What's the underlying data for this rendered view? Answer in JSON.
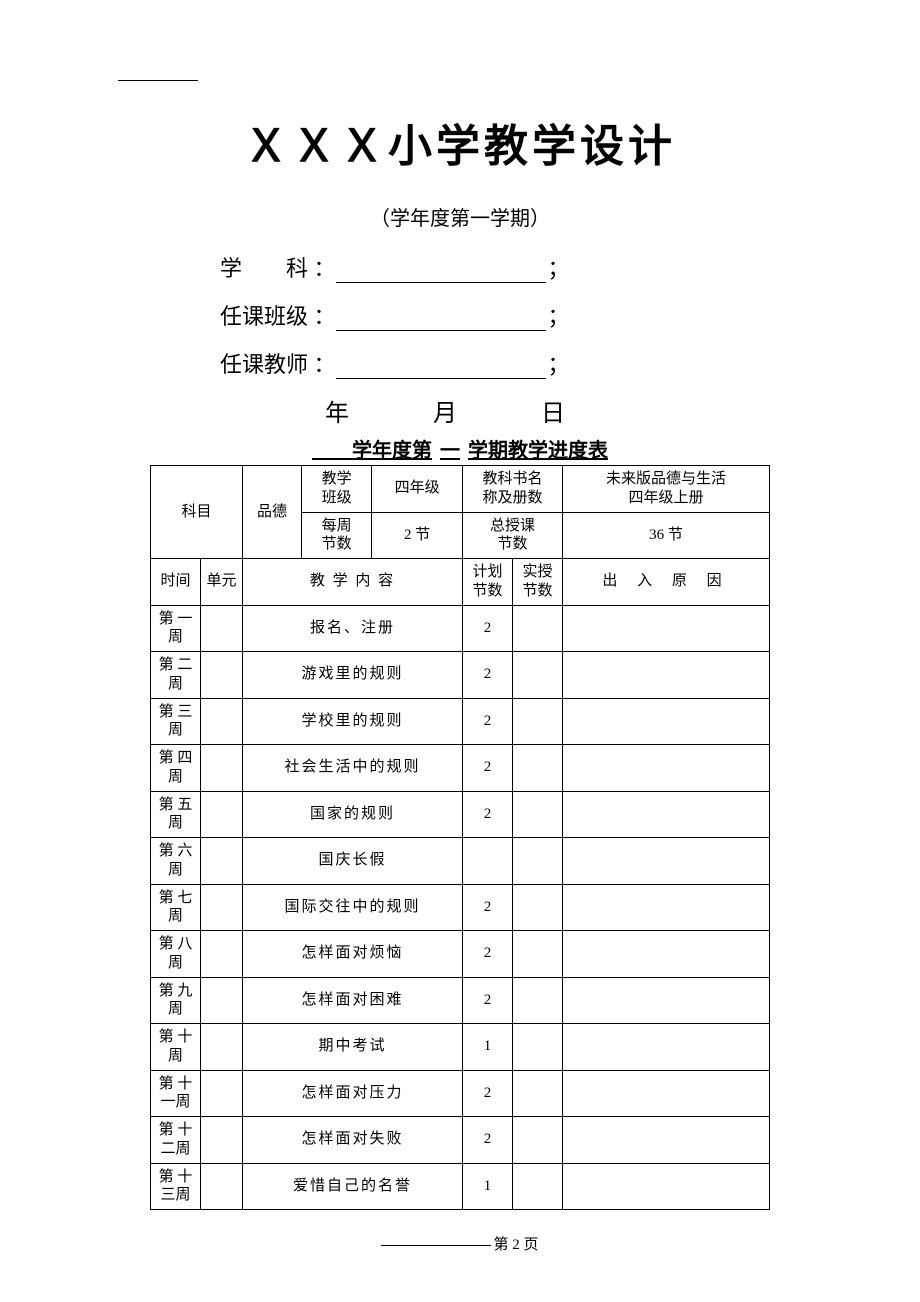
{
  "title": "ＸＸＸ小学教学设计",
  "subtitle": "（学年度第一学期）",
  "fields": {
    "subject_label": "学　　科 ：",
    "class_label": "任课班级 ：",
    "teacher_label": "任课教师 ：",
    "semicolon": "；"
  },
  "date_line": "年　月　日",
  "caption_pre": "　　学年度第",
  "caption_mid": "一",
  "caption_post": "学期教学进度表",
  "header": {
    "subject_l": "科目",
    "subject_v": "品德",
    "class_l": "教学\n班级",
    "class_v": "四年级",
    "book_l": "教科书名\n称及册数",
    "book_v": "未来版品德与生活\n四年级上册",
    "weekly_l": "每周\n节数",
    "weekly_v": "2 节",
    "total_l": "总授课\n节数",
    "total_v": "36 节"
  },
  "cols": {
    "time": "时间",
    "unit": "单元",
    "content": "教 学 内 容",
    "plan": "计划\n节数",
    "actual": "实授\n节数",
    "reason": "出 入 原 因"
  },
  "rows": [
    {
      "wk": "第 一\n周",
      "c": "报名、注册",
      "p": "2"
    },
    {
      "wk": "第 二\n周",
      "c": "游戏里的规则",
      "p": "2"
    },
    {
      "wk": "第 三\n周",
      "c": "学校里的规则",
      "p": "2"
    },
    {
      "wk": "第 四\n周",
      "c": "社会生活中的规则",
      "p": "2"
    },
    {
      "wk": "第 五\n周",
      "c": "国家的规则",
      "p": "2"
    },
    {
      "wk": "第 六\n周",
      "c": "国庆长假",
      "p": ""
    },
    {
      "wk": "第 七\n周",
      "c": "国际交往中的规则",
      "p": "2"
    },
    {
      "wk": "第 八\n周",
      "c": "怎样面对烦恼",
      "p": "2"
    },
    {
      "wk": "第 九\n周",
      "c": "怎样面对困难",
      "p": "2"
    },
    {
      "wk": "第 十\n周",
      "c": "期中考试",
      "p": "1"
    },
    {
      "wk": "第 十\n一周",
      "c": "怎样面对压力",
      "p": "2"
    },
    {
      "wk": "第 十\n二周",
      "c": "怎样面对失败",
      "p": "2"
    },
    {
      "wk": "第 十\n三周",
      "c": "爱惜自己的名誉",
      "p": "1"
    }
  ],
  "footer": "第 2 页"
}
